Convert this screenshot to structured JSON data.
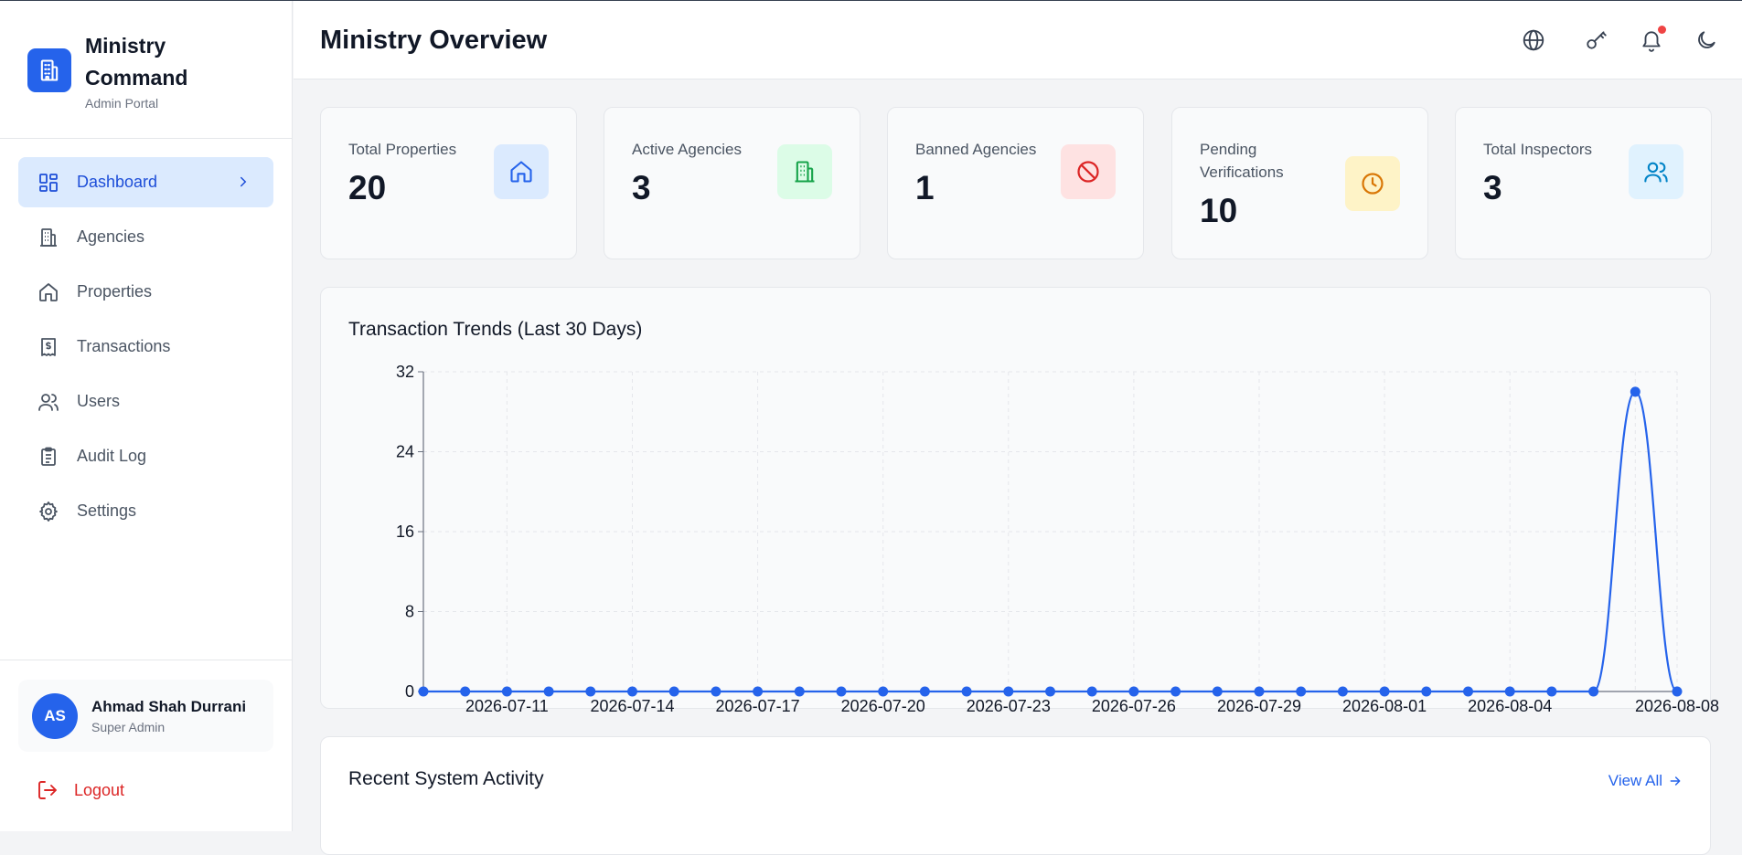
{
  "brand": {
    "title": "Ministry Command",
    "subtitle": "Admin Portal"
  },
  "nav": {
    "items": [
      {
        "label": "Dashboard",
        "icon": "dashboard-icon",
        "active": true
      },
      {
        "label": "Agencies",
        "icon": "building-icon"
      },
      {
        "label": "Properties",
        "icon": "home-icon"
      },
      {
        "label": "Transactions",
        "icon": "receipt-icon"
      },
      {
        "label": "Users",
        "icon": "users-icon"
      },
      {
        "label": "Audit Log",
        "icon": "clipboard-icon"
      },
      {
        "label": "Settings",
        "icon": "gear-icon"
      }
    ]
  },
  "user": {
    "initials": "AS",
    "name": "Ahmad Shah Durrani",
    "role": "Super Admin"
  },
  "logout_label": "Logout",
  "header": {
    "title": "Ministry Overview",
    "icons": [
      "globe-icon",
      "key-icon",
      "bell-icon",
      "moon-icon"
    ]
  },
  "stats": [
    {
      "label": "Total Properties",
      "value": "20",
      "icon": "home-icon",
      "bg": "#dbeafe",
      "fg": "#2563eb"
    },
    {
      "label": "Active Agencies",
      "value": "3",
      "icon": "building-icon",
      "bg": "#dcfce7",
      "fg": "#16a34a"
    },
    {
      "label": "Banned Agencies",
      "value": "1",
      "icon": "ban-icon",
      "bg": "#fee2e2",
      "fg": "#dc2626"
    },
    {
      "label": "Pending Verifications",
      "value": "10",
      "icon": "clock-icon",
      "bg": "#fef3c7",
      "fg": "#d97706"
    },
    {
      "label": "Total Inspectors",
      "value": "3",
      "icon": "users-icon",
      "bg": "#e0f2fe",
      "fg": "#0284c7"
    }
  ],
  "chart_data": {
    "type": "line",
    "title": "Transaction Trends (Last 30 Days)",
    "xlabel": "",
    "ylabel": "",
    "x": [
      "2026-07-09",
      "2026-07-10",
      "2026-07-11",
      "2026-07-12",
      "2026-07-13",
      "2026-07-14",
      "2026-07-15",
      "2026-07-16",
      "2026-07-17",
      "2026-07-18",
      "2026-07-19",
      "2026-07-20",
      "2026-07-21",
      "2026-07-22",
      "2026-07-23",
      "2026-07-24",
      "2026-07-25",
      "2026-07-26",
      "2026-07-27",
      "2026-07-28",
      "2026-07-29",
      "2026-07-30",
      "2026-07-31",
      "2026-08-01",
      "2026-08-02",
      "2026-08-03",
      "2026-08-04",
      "2026-08-05",
      "2026-08-06",
      "2026-08-07",
      "2026-08-08"
    ],
    "x_tick_labels": [
      "2026-07-11",
      "2026-07-14",
      "2026-07-17",
      "2026-07-20",
      "2026-07-23",
      "2026-07-26",
      "2026-07-29",
      "2026-08-01",
      "2026-08-04",
      "2026-08-08"
    ],
    "series": [
      {
        "values": [
          0,
          0,
          0,
          0,
          0,
          0,
          0,
          0,
          0,
          0,
          0,
          0,
          0,
          0,
          0,
          0,
          0,
          0,
          0,
          0,
          0,
          0,
          0,
          0,
          0,
          0,
          0,
          0,
          0,
          30,
          0
        ]
      }
    ],
    "ylim": [
      0,
      32
    ],
    "y_ticks": [
      0,
      8,
      16,
      24,
      32
    ],
    "grid": true,
    "line_color": "#2563eb"
  },
  "activity": {
    "title": "Recent System Activity",
    "view_all": "View All"
  }
}
